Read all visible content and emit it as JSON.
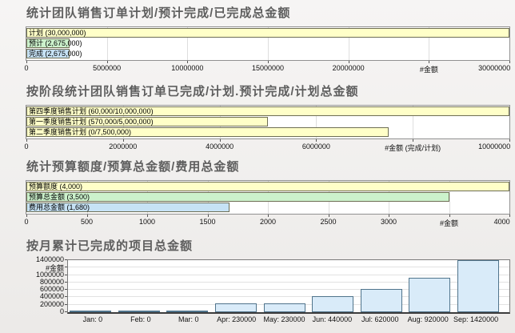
{
  "page": {
    "background": "#f1efed",
    "title_color": "#5e5e5e"
  },
  "colors": {
    "bar_yellow": "#FFFFC8",
    "bar_green": "#CCF2CC",
    "bar_blue": "#C6E2F5",
    "hbar_border": "#6e6e54",
    "vbar_fill": "#D9EBF9",
    "vbar_border": "#50748C",
    "grid": "#dedede",
    "plot_border": "#919191"
  },
  "chart_data": [
    {
      "type": "bar",
      "orientation": "horizontal",
      "title": "统计团队销售订单计划/预计完成/已完成总金额",
      "categories": [
        "计划",
        "预计",
        "完成"
      ],
      "values": [
        30000000,
        2675000,
        2675000
      ],
      "bar_labels": [
        "计划 (30,000,000)",
        "预计 (2,675,000)",
        "完成 (2,675,000)"
      ],
      "bar_colors": [
        "#FFFFC8",
        "#CCF2CC",
        "#C6E2F5"
      ],
      "xlabel": "#金额",
      "xlim": [
        0,
        30000000
      ],
      "grid": true,
      "xticks": [
        {
          "v": 0,
          "label": "0"
        },
        {
          "v": 5000000,
          "label": "5000000"
        },
        {
          "v": 10000000,
          "label": "10000000"
        },
        {
          "v": 15000000,
          "label": "15000000"
        },
        {
          "v": 20000000,
          "label": "20000000"
        },
        {
          "v": 25000000,
          "label": "#金额"
        },
        {
          "v": 30000000,
          "label": "30000000"
        }
      ]
    },
    {
      "type": "bar",
      "orientation": "horizontal",
      "title": "按阶段统计团队销售订单已完成/计划.预计完成/计划总金额",
      "categories": [
        "第四季度销售计划",
        "第一季度销售计划",
        "第二季度销售计划"
      ],
      "values": [
        10000000,
        5000000,
        7500000
      ],
      "completed_values": [
        60000,
        570000,
        0
      ],
      "planned_values": [
        10000000,
        5000000,
        7500000
      ],
      "bar_labels": [
        "第四季度销售计划 (60,000/10,000,000)",
        "第一季度销售计划 (570,000/5,000,000)",
        "第二季度销售计划 (0/7,500,000)"
      ],
      "bar_colors": [
        "#FFFFC8",
        "#FFFFC8",
        "#FFFFC8"
      ],
      "xlabel": "#金额 (完成/计划)",
      "xlim": [
        0,
        10000000
      ],
      "grid": true,
      "xticks": [
        {
          "v": 0,
          "label": "0"
        },
        {
          "v": 2000000,
          "label": "2000000"
        },
        {
          "v": 4000000,
          "label": "4000000"
        },
        {
          "v": 6000000,
          "label": "6000000"
        },
        {
          "v": 8000000,
          "label": "#金额 (完成/计划)"
        },
        {
          "v": 10000000,
          "label": "10000000"
        }
      ]
    },
    {
      "type": "bar",
      "orientation": "horizontal",
      "title": "统计预算额度/预算总金额/费用总金额",
      "categories": [
        "预算额度",
        "预算总金额",
        "费用总金额"
      ],
      "values": [
        4000,
        3500,
        1680
      ],
      "bar_labels": [
        "预算额度 (4,000)",
        "预算总金额 (3,500)",
        "费用总金额 (1,680)"
      ],
      "bar_colors": [
        "#FFFFC8",
        "#CCF2CC",
        "#C6E2F5"
      ],
      "xlabel": "#金额",
      "xlim": [
        0,
        4000
      ],
      "grid": true,
      "xticks": [
        {
          "v": 0,
          "label": "0"
        },
        {
          "v": 500,
          "label": "500"
        },
        {
          "v": 1000,
          "label": "1000"
        },
        {
          "v": 1500,
          "label": "1500"
        },
        {
          "v": 2000,
          "label": "2000"
        },
        {
          "v": 2500,
          "label": "2500"
        },
        {
          "v": 3000,
          "label": "3000"
        },
        {
          "v": 3500,
          "label": "#金额"
        },
        {
          "v": 4000,
          "label": "4000"
        }
      ]
    },
    {
      "type": "bar",
      "orientation": "vertical",
      "title": "按月累计已完成的项目总金额",
      "categories": [
        "Jan: 0",
        "Feb: 0",
        "Mar: 0",
        "Apr: 230000",
        "May: 230000",
        "Jun: 440000",
        "Jul: 620000",
        "Aug: 920000",
        "Sep: 1420000"
      ],
      "values": [
        0,
        0,
        0,
        230000,
        230000,
        440000,
        620000,
        920000,
        1420000
      ],
      "ylabel": "#金额",
      "ylim": [
        0,
        1400000
      ],
      "grid": true,
      "yticks": [
        {
          "v": 0,
          "label": "0"
        },
        {
          "v": 200000,
          "label": "200000"
        },
        {
          "v": 400000,
          "label": "400000"
        },
        {
          "v": 600000,
          "label": "600000"
        },
        {
          "v": 800000,
          "label": "800000"
        },
        {
          "v": 1000000,
          "label": "1000000"
        },
        {
          "v": 1200000,
          "label": "#金额"
        },
        {
          "v": 1400000,
          "label": "1400000"
        }
      ]
    }
  ]
}
